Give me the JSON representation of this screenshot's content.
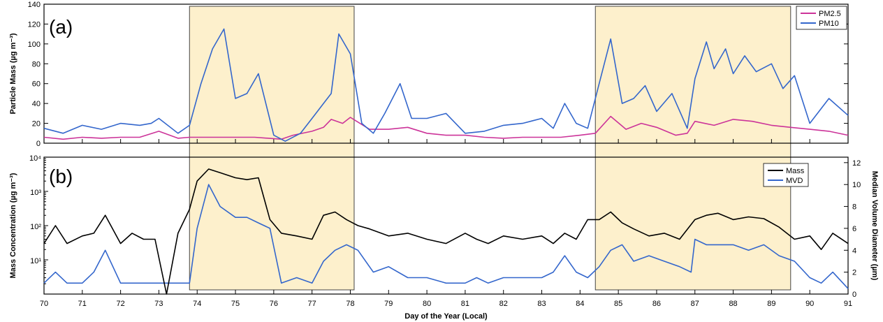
{
  "chart_data": [
    {
      "panel_label": "(a)",
      "type": "line",
      "ylabel": "Particle Mass (µg m⁻³)",
      "xlim": [
        70,
        91
      ],
      "ylim": [
        0,
        140
      ],
      "yticks": [
        0,
        20,
        40,
        60,
        80,
        100,
        120,
        140
      ],
      "legend_position": "top-right",
      "shaded_regions": [
        [
          73.8,
          78.1
        ],
        [
          84.4,
          89.5
        ]
      ],
      "series": [
        {
          "name": "PM2.5",
          "color": "#cc3399",
          "x": [
            70,
            70.5,
            71,
            71.5,
            72,
            72.5,
            73,
            73.5,
            73.8,
            74.5,
            75.5,
            76.2,
            76.5,
            77,
            77.3,
            77.5,
            77.8,
            78,
            78.5,
            79,
            79.5,
            80,
            80.5,
            81,
            81.5,
            82,
            82.5,
            83,
            83.5,
            84,
            84.4,
            84.8,
            85.2,
            85.6,
            86,
            86.5,
            86.8,
            87,
            87.5,
            88,
            88.5,
            89,
            89.5,
            90,
            90.5,
            91
          ],
          "values": [
            6,
            4,
            6,
            5,
            6,
            6,
            12,
            5,
            6,
            6,
            6,
            4,
            8,
            12,
            16,
            24,
            20,
            26,
            14,
            14,
            16,
            10,
            8,
            8,
            6,
            5,
            6,
            6,
            6,
            8,
            10,
            27,
            14,
            20,
            16,
            8,
            10,
            22,
            18,
            24,
            22,
            18,
            16,
            14,
            12,
            8
          ]
        },
        {
          "name": "PM10",
          "color": "#3366cc",
          "x": [
            70,
            70.5,
            71,
            71.5,
            72,
            72.5,
            72.8,
            73,
            73.5,
            73.8,
            74.1,
            74.4,
            74.7,
            75,
            75.3,
            75.6,
            76,
            76.3,
            76.7,
            77,
            77.3,
            77.5,
            77.7,
            78,
            78.3,
            78.6,
            78.9,
            79.3,
            79.6,
            80,
            80.5,
            81,
            81.5,
            82,
            82.5,
            83,
            83.3,
            83.6,
            83.9,
            84.2,
            84.5,
            84.8,
            85.1,
            85.4,
            85.7,
            86,
            86.4,
            86.8,
            87,
            87.3,
            87.5,
            87.8,
            88,
            88.3,
            88.6,
            89,
            89.3,
            89.6,
            90,
            90.5,
            91
          ],
          "values": [
            15,
            10,
            18,
            14,
            20,
            18,
            20,
            25,
            10,
            18,
            60,
            95,
            115,
            45,
            50,
            70,
            8,
            2,
            10,
            25,
            40,
            50,
            110,
            90,
            20,
            10,
            30,
            60,
            25,
            25,
            30,
            10,
            12,
            18,
            20,
            25,
            15,
            40,
            20,
            15,
            60,
            105,
            40,
            45,
            58,
            32,
            50,
            15,
            65,
            102,
            75,
            95,
            70,
            88,
            72,
            80,
            55,
            68,
            20,
            45,
            28
          ]
        }
      ]
    },
    {
      "panel_label": "(b)",
      "type": "line",
      "ylabel": "Mass Concentration (µg m⁻³)",
      "y2label": "Median Volume Diameter (µm)",
      "xlabel": "Day of the Year (Local)",
      "xlim": [
        70,
        91
      ],
      "xticks": [
        70,
        71,
        72,
        73,
        74,
        75,
        76,
        77,
        78,
        79,
        80,
        81,
        82,
        83,
        84,
        85,
        86,
        87,
        88,
        89,
        90,
        91
      ],
      "yscale": "log",
      "ylim": [
        1,
        10000
      ],
      "ytick_labels": [
        "10¹",
        "10²",
        "10³",
        "10⁴"
      ],
      "y2lim": [
        0,
        12.5
      ],
      "y2ticks": [
        0,
        2,
        4,
        6,
        8,
        10,
        12
      ],
      "legend_position": "top-right",
      "shaded_regions": [
        [
          73.8,
          78.1
        ],
        [
          84.4,
          89.5
        ]
      ],
      "series": [
        {
          "name": "Mass",
          "color": "#000000",
          "axis": "left",
          "x": [
            70,
            70.3,
            70.6,
            71,
            71.3,
            71.6,
            72,
            72.3,
            72.6,
            72.9,
            73.2,
            73.5,
            73.8,
            74,
            74.3,
            74.6,
            75,
            75.3,
            75.6,
            75.9,
            76.2,
            76.6,
            77,
            77.3,
            77.6,
            77.9,
            78.2,
            78.5,
            79,
            79.5,
            80,
            80.5,
            81,
            81.3,
            81.6,
            82,
            82.5,
            83,
            83.3,
            83.6,
            83.9,
            84.2,
            84.5,
            84.8,
            85.1,
            85.4,
            85.8,
            86.2,
            86.6,
            87,
            87.3,
            87.6,
            88,
            88.4,
            88.8,
            89.2,
            89.6,
            90,
            90.3,
            90.6,
            91
          ],
          "values": [
            30,
            100,
            30,
            50,
            60,
            200,
            30,
            60,
            40,
            40,
            1,
            60,
            300,
            2000,
            4500,
            3500,
            2500,
            2200,
            2500,
            150,
            60,
            50,
            40,
            200,
            250,
            150,
            100,
            80,
            50,
            60,
            40,
            30,
            60,
            40,
            30,
            50,
            40,
            50,
            30,
            60,
            40,
            150,
            150,
            250,
            120,
            80,
            50,
            60,
            40,
            150,
            200,
            230,
            150,
            180,
            160,
            90,
            40,
            50,
            20,
            60,
            30
          ]
        },
        {
          "name": "MVD",
          "color": "#3366cc",
          "axis": "right",
          "x": [
            70,
            70.3,
            70.6,
            71,
            71.3,
            71.6,
            72,
            72.3,
            72.6,
            72.9,
            73.5,
            73.8,
            74,
            74.3,
            74.6,
            75,
            75.3,
            75.6,
            75.9,
            76.2,
            76.6,
            77,
            77.3,
            77.6,
            77.9,
            78.2,
            78.6,
            79,
            79.5,
            80,
            80.5,
            81,
            81.3,
            81.6,
            82,
            82.5,
            83,
            83.3,
            83.6,
            83.9,
            84.2,
            84.5,
            84.8,
            85.1,
            85.4,
            85.8,
            86.2,
            86.6,
            86.9,
            87,
            87.3,
            87.6,
            88,
            88.4,
            88.8,
            89.2,
            89.6,
            90,
            90.3,
            90.6,
            91
          ],
          "values": [
            1,
            2,
            1,
            1,
            2,
            4,
            1,
            1,
            1,
            1,
            1,
            1,
            6,
            10,
            8,
            7,
            7,
            6.5,
            6,
            1,
            1.5,
            1,
            3,
            4,
            4.5,
            4,
            2,
            2.5,
            1.5,
            1.5,
            1,
            1,
            1.5,
            1,
            1.5,
            1.5,
            1.5,
            2,
            3.5,
            2,
            1.5,
            2.5,
            4,
            4.5,
            3,
            3.5,
            3,
            2.5,
            2,
            5,
            4.5,
            4.5,
            4.5,
            4,
            4.5,
            3.5,
            3,
            1.5,
            1,
            2,
            0.5
          ]
        }
      ]
    }
  ]
}
